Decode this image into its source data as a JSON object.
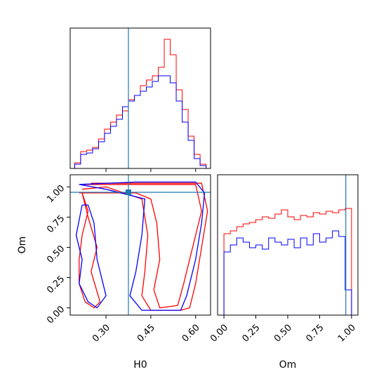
{
  "chart_data": {
    "type": "corner",
    "parameters": [
      "H0",
      "Om"
    ],
    "truth": {
      "H0": 0.375,
      "Om": 0.955
    },
    "colors": {
      "red": "#ff0000",
      "blue": "#0000ff",
      "truth": "#1f77b4"
    },
    "panels": [
      {
        "id": "hist-h0",
        "type": "histogram",
        "xlim": [
          0.18,
          0.65
        ],
        "ylim": [
          0,
          1.0
        ],
        "bin_edges": [
          0.195,
          0.215,
          0.235,
          0.255,
          0.275,
          0.295,
          0.315,
          0.335,
          0.355,
          0.375,
          0.395,
          0.415,
          0.435,
          0.455,
          0.475,
          0.495,
          0.515,
          0.535,
          0.555,
          0.575,
          0.595,
          0.615,
          0.635
        ],
        "series": [
          {
            "name": "",
            "color": "#ff0000",
            "values": [
              0.04,
              0.12,
              0.13,
              0.15,
              0.21,
              0.28,
              0.33,
              0.38,
              0.41,
              0.49,
              0.52,
              0.59,
              0.63,
              0.66,
              0.72,
              0.92,
              0.81,
              0.56,
              0.42,
              0.23,
              0.1,
              0.03
            ]
          },
          {
            "name": "",
            "color": "#0000ff",
            "values": [
              0.03,
              0.1,
              0.11,
              0.14,
              0.19,
              0.25,
              0.3,
              0.35,
              0.44,
              0.48,
              0.52,
              0.55,
              0.58,
              0.62,
              0.66,
              0.66,
              0.61,
              0.48,
              0.33,
              0.2,
              0.07,
              0.02
            ]
          }
        ]
      },
      {
        "id": "contour-h0-om",
        "type": "contour",
        "xlim": [
          0.18,
          0.65
        ],
        "ylim": [
          -0.06,
          1.1
        ],
        "series": [
          {
            "name": "",
            "color": "#ff0000",
            "contours": [
              [
                [
                  0.25,
                  1.03
                ],
                [
                  0.5,
                  1.03
                ],
                [
                  0.62,
                  1.03
                ],
                [
                  0.64,
                  0.8
                ],
                [
                  0.62,
                  0.5
                ],
                [
                  0.6,
                  0.2
                ],
                [
                  0.58,
                  0.0
                ],
                [
                  0.55,
                  -0.02
                ],
                [
                  0.45,
                  -0.02
                ],
                [
                  0.42,
                  0.1
                ],
                [
                  0.43,
                  0.3
                ],
                [
                  0.44,
                  0.6
                ],
                [
                  0.42,
                  0.9
                ],
                [
                  0.3,
                  1.0
                ],
                [
                  0.22,
                  0.98
                ]
              ],
              [
                [
                  0.21,
                  1.02
                ],
                [
                  0.4,
                  1.02
                ],
                [
                  0.6,
                  1.02
                ],
                [
                  0.62,
                  0.8
                ],
                [
                  0.6,
                  0.6
                ],
                [
                  0.58,
                  0.4
                ],
                [
                  0.56,
                  0.2
                ],
                [
                  0.54,
                  0.02
                ],
                [
                  0.48,
                  0.0
                ],
                [
                  0.46,
                  0.15
                ],
                [
                  0.48,
                  0.4
                ],
                [
                  0.47,
                  0.7
                ],
                [
                  0.45,
                  0.9
                ],
                [
                  0.4,
                  0.95
                ],
                [
                  0.21,
                  0.95
                ]
              ],
              [
                [
                  0.22,
                  0.95
                ],
                [
                  0.24,
                  0.8
                ],
                [
                  0.22,
                  0.6
                ],
                [
                  0.21,
                  0.4
                ],
                [
                  0.21,
                  0.2
                ],
                [
                  0.23,
                  0.05
                ],
                [
                  0.26,
                  0.0
                ],
                [
                  0.28,
                  0.05
                ],
                [
                  0.25,
                  0.3
                ],
                [
                  0.27,
                  0.5
                ],
                [
                  0.24,
                  0.75
                ],
                [
                  0.22,
                  0.95
                ]
              ]
            ]
          },
          {
            "name": "",
            "color": "#0000ff",
            "contours": [
              [
                [
                  0.21,
                  1.02
                ],
                [
                  0.4,
                  1.04
                ],
                [
                  0.6,
                  1.04
                ],
                [
                  0.63,
                  0.95
                ],
                [
                  0.62,
                  0.7
                ],
                [
                  0.6,
                  0.4
                ],
                [
                  0.57,
                  0.1
                ],
                [
                  0.55,
                  -0.02
                ],
                [
                  0.42,
                  -0.02
                ],
                [
                  0.38,
                  0.1
                ],
                [
                  0.4,
                  0.3
                ],
                [
                  0.42,
                  0.6
                ],
                [
                  0.43,
                  0.9
                ],
                [
                  0.3,
                  0.98
                ],
                [
                  0.21,
                  1.02
                ]
              ],
              [
                [
                  0.22,
                  0.85
                ],
                [
                  0.2,
                  0.6
                ],
                [
                  0.22,
                  0.4
                ],
                [
                  0.21,
                  0.2
                ],
                [
                  0.24,
                  0.05
                ],
                [
                  0.27,
                  0.0
                ],
                [
                  0.3,
                  0.1
                ],
                [
                  0.27,
                  0.4
                ],
                [
                  0.26,
                  0.7
                ],
                [
                  0.24,
                  0.85
                ],
                [
                  0.22,
                  0.85
                ]
              ]
            ]
          }
        ]
      },
      {
        "id": "hist-om",
        "type": "histogram",
        "xlim": [
          -0.05,
          1.05
        ],
        "ylim": [
          0,
          1.0
        ],
        "bin_edges": [
          0.0,
          0.05,
          0.1,
          0.15,
          0.2,
          0.25,
          0.3,
          0.35,
          0.4,
          0.45,
          0.5,
          0.55,
          0.6,
          0.65,
          0.7,
          0.75,
          0.8,
          0.85,
          0.9,
          0.95,
          1.0
        ],
        "series": [
          {
            "name": "",
            "color": "#ff0000",
            "values": [
              0.58,
              0.6,
              0.63,
              0.65,
              0.66,
              0.68,
              0.7,
              0.69,
              0.72,
              0.75,
              0.7,
              0.68,
              0.71,
              0.7,
              0.73,
              0.72,
              0.74,
              0.73,
              0.75,
              0.76
            ]
          },
          {
            "name": "",
            "color": "#0000ff",
            "values": [
              0.45,
              0.5,
              0.55,
              0.52,
              0.48,
              0.5,
              0.47,
              0.55,
              0.52,
              0.5,
              0.54,
              0.48,
              0.55,
              0.5,
              0.58,
              0.52,
              0.55,
              0.6,
              0.56,
              0.18
            ]
          }
        ]
      }
    ],
    "xticks": {
      "H0": [
        "0.30",
        "0.45",
        "0.60"
      ],
      "Om": [
        "0.00",
        "0.25",
        "0.50",
        "0.75",
        "1.00"
      ]
    },
    "xtick_values": {
      "H0": [
        0.3,
        0.45,
        0.6
      ],
      "Om": [
        0.0,
        0.25,
        0.5,
        0.75,
        1.0
      ]
    },
    "yticks": {
      "Om": [
        "0.00",
        "0.25",
        "0.50",
        "0.75",
        "1.00"
      ]
    },
    "ytick_values": {
      "Om": [
        0.0,
        0.25,
        0.5,
        0.75,
        1.0
      ]
    },
    "xlabels": {
      "H0": "H0",
      "Om": "Om"
    },
    "ylabels": {
      "Om": "Om"
    }
  }
}
